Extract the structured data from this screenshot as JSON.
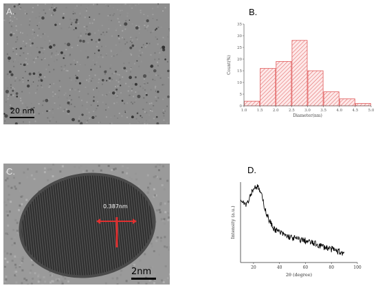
{
  "panels": {
    "a": {
      "label": "A.",
      "scale_bar": "20 nm"
    },
    "b": {
      "label": "B."
    },
    "c": {
      "label": "C.",
      "lattice_label": "0.387nm",
      "scale_bar": "2nm"
    },
    "d": {
      "label": "D."
    }
  },
  "chart_data": [
    {
      "type": "bar",
      "xlabel": "Diameter(nm)",
      "ylabel": "Count(%)",
      "xlim": [
        1.0,
        5.0
      ],
      "ylim": [
        0,
        35
      ],
      "x_ticks": [
        "1.0",
        "1.5",
        "2.0",
        "2.5",
        "3.0",
        "3.5",
        "4.0",
        "4.5",
        "5.0"
      ],
      "y_ticks": [
        "0",
        "5",
        "10",
        "15",
        "20",
        "25",
        "30",
        "35"
      ],
      "bins": [
        [
          1.0,
          1.5
        ],
        [
          1.5,
          2.0
        ],
        [
          2.0,
          2.5
        ],
        [
          2.5,
          3.0
        ],
        [
          3.0,
          3.5
        ],
        [
          3.5,
          4.0
        ],
        [
          4.0,
          4.5
        ],
        [
          4.5,
          5.0
        ]
      ],
      "values": [
        2,
        16,
        19,
        28,
        15,
        6,
        3,
        1
      ],
      "bar_color": "#e05a5a",
      "grid": false
    },
    {
      "type": "line",
      "xlabel": "2θ (degree)",
      "ylabel": "Intensity (a.u.)",
      "xlim": [
        10,
        100
      ],
      "x_ticks": [
        "20",
        "40",
        "60",
        "80",
        "100"
      ],
      "x": [
        10,
        12,
        14,
        16,
        18,
        20,
        22,
        24,
        26,
        28,
        30,
        32,
        34,
        36,
        38,
        40,
        45,
        50,
        55,
        60,
        65,
        70,
        75,
        80,
        85,
        90
      ],
      "values": [
        0.82,
        0.8,
        0.75,
        0.8,
        0.9,
        0.97,
        1.0,
        0.97,
        0.88,
        0.74,
        0.62,
        0.52,
        0.45,
        0.4,
        0.37,
        0.35,
        0.3,
        0.27,
        0.25,
        0.23,
        0.2,
        0.17,
        0.14,
        0.11,
        0.08,
        0.05
      ],
      "line_color": "#000000",
      "grid": false
    }
  ]
}
